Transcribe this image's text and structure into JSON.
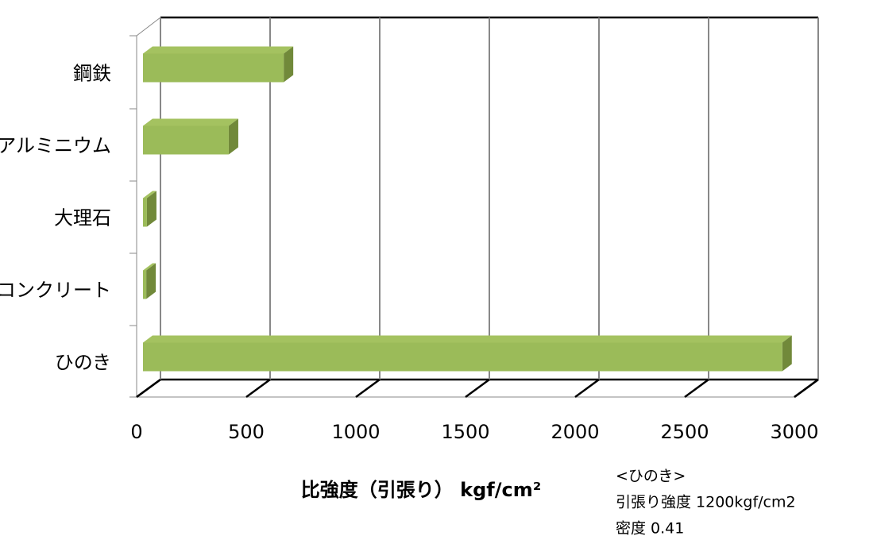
{
  "chart_data": {
    "type": "bar3d",
    "orientation": "horizontal",
    "categories": [
      "鋼鉄",
      "アルミニウム",
      "大理石",
      "コンクリート",
      "ひのき"
    ],
    "values": [
      645,
      393,
      18,
      15,
      2930
    ],
    "color": "#9bbb59",
    "xlim": [
      0,
      3000
    ],
    "xticks": [
      0,
      500,
      1000,
      1500,
      2000,
      2500,
      3000
    ],
    "grid": true,
    "x_label": "比強度（引張り） kgf/cm²",
    "annotations": [
      "<ひのき>",
      "引張り強度 1200kgf/cm2",
      "密度 0.41"
    ]
  }
}
